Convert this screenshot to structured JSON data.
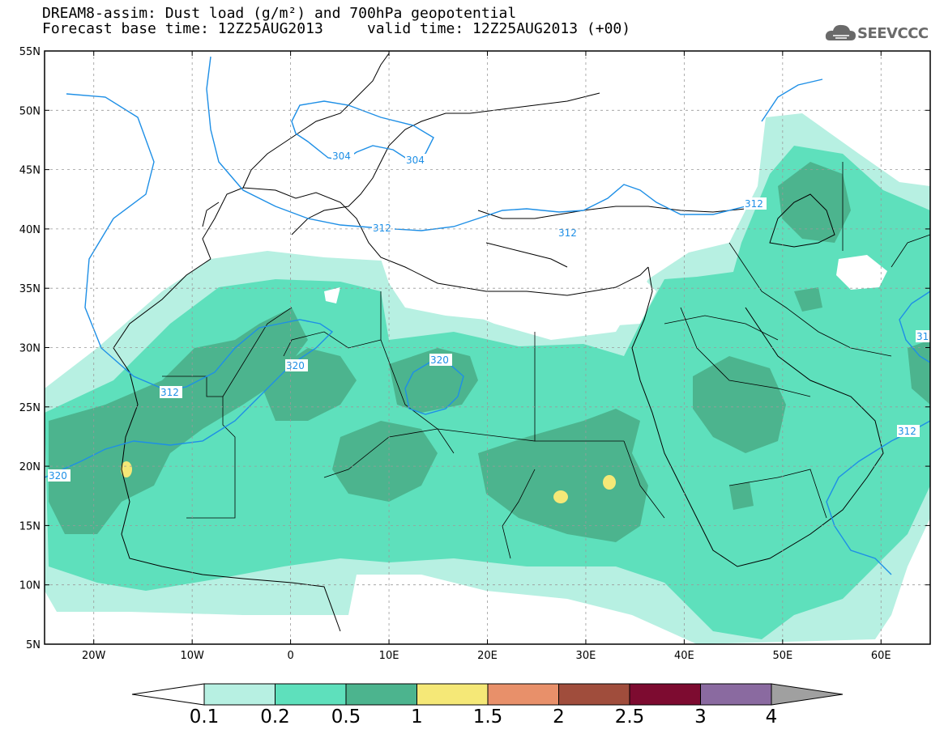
{
  "title": {
    "line1": "DREAM8-assim: Dust load (g/m²) and 700hPa geopotential",
    "line2": "Forecast base time: 12Z25AUG2013     valid time: 12Z25AUG2013 (+00)"
  },
  "logo": {
    "text": "SEEVCCC",
    "icon": "cloud-icon"
  },
  "map": {
    "region": "North Africa, Europe and Middle East",
    "lon_range": [
      -25,
      65
    ],
    "lat_range": [
      5,
      55
    ],
    "lat_labels": [
      "55N",
      "50N",
      "45N",
      "40N",
      "35N",
      "30N",
      "25N",
      "20N",
      "15N",
      "10N",
      "5N"
    ],
    "lon_labels": [
      "20W",
      "10W",
      "0",
      "10E",
      "20E",
      "30E",
      "40E",
      "50E",
      "60E"
    ],
    "grid": "dashed",
    "contour_color": "#1e8fe6",
    "contour_labels": [
      "304",
      "304",
      "312",
      "312",
      "312",
      "320",
      "320",
      "320",
      "312",
      "312",
      "31"
    ]
  },
  "colorbar": {
    "colors": [
      "#b7f0e2",
      "#5ee0bc",
      "#4cb48e",
      "#f5e877",
      "#e8906a",
      "#a04d3c",
      "#7d0b30",
      "#8a6aa0",
      "#a0a0a0"
    ],
    "labels": [
      "0.1",
      "0.2",
      "0.5",
      "1",
      "1.5",
      "2",
      "2.5",
      "3",
      "4"
    ]
  }
}
